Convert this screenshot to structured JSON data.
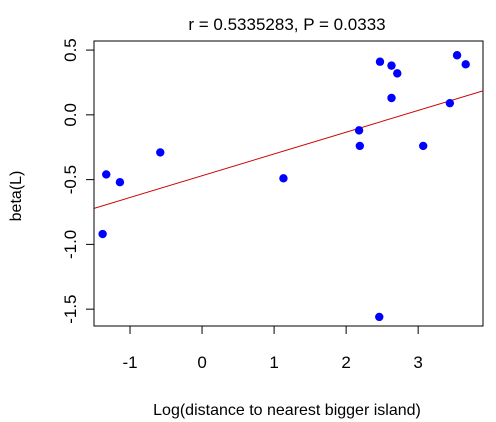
{
  "chart_data": {
    "type": "scatter",
    "title": "r = 0.5335283, P = 0.0333",
    "xlabel": "Log(distance to nearest bigger island)",
    "ylabel": "beta(L)",
    "xlim": [
      -1.5,
      3.9
    ],
    "ylim": [
      -1.63,
      0.57
    ],
    "xticks": [
      -1,
      0,
      1,
      2,
      3
    ],
    "xtick_labels": [
      "-1",
      "0",
      "1",
      "2",
      "3"
    ],
    "yticks": [
      -1.5,
      -1.0,
      -0.5,
      0.0,
      0.5
    ],
    "ytick_labels": [
      "-1.5",
      "-1.0",
      "-0.5",
      "0.0",
      "0.5"
    ],
    "grid": false,
    "point_color": "#0000ff",
    "fit_line_color": "#cc0000",
    "points": [
      {
        "x": -1.38,
        "y": -0.92
      },
      {
        "x": -1.33,
        "y": -0.46
      },
      {
        "x": -1.14,
        "y": -0.52
      },
      {
        "x": -0.58,
        "y": -0.29
      },
      {
        "x": 1.13,
        "y": -0.49
      },
      {
        "x": 2.18,
        "y": -0.12
      },
      {
        "x": 2.19,
        "y": -0.24
      },
      {
        "x": 2.46,
        "y": -1.56
      },
      {
        "x": 2.47,
        "y": 0.41
      },
      {
        "x": 2.63,
        "y": 0.38
      },
      {
        "x": 2.63,
        "y": 0.13
      },
      {
        "x": 2.71,
        "y": 0.32
      },
      {
        "x": 3.07,
        "y": -0.24
      },
      {
        "x": 3.44,
        "y": 0.09
      },
      {
        "x": 3.54,
        "y": 0.46
      },
      {
        "x": 3.66,
        "y": 0.39
      }
    ],
    "fit_line": {
      "intercept": -0.47,
      "slope": 0.168
    }
  }
}
